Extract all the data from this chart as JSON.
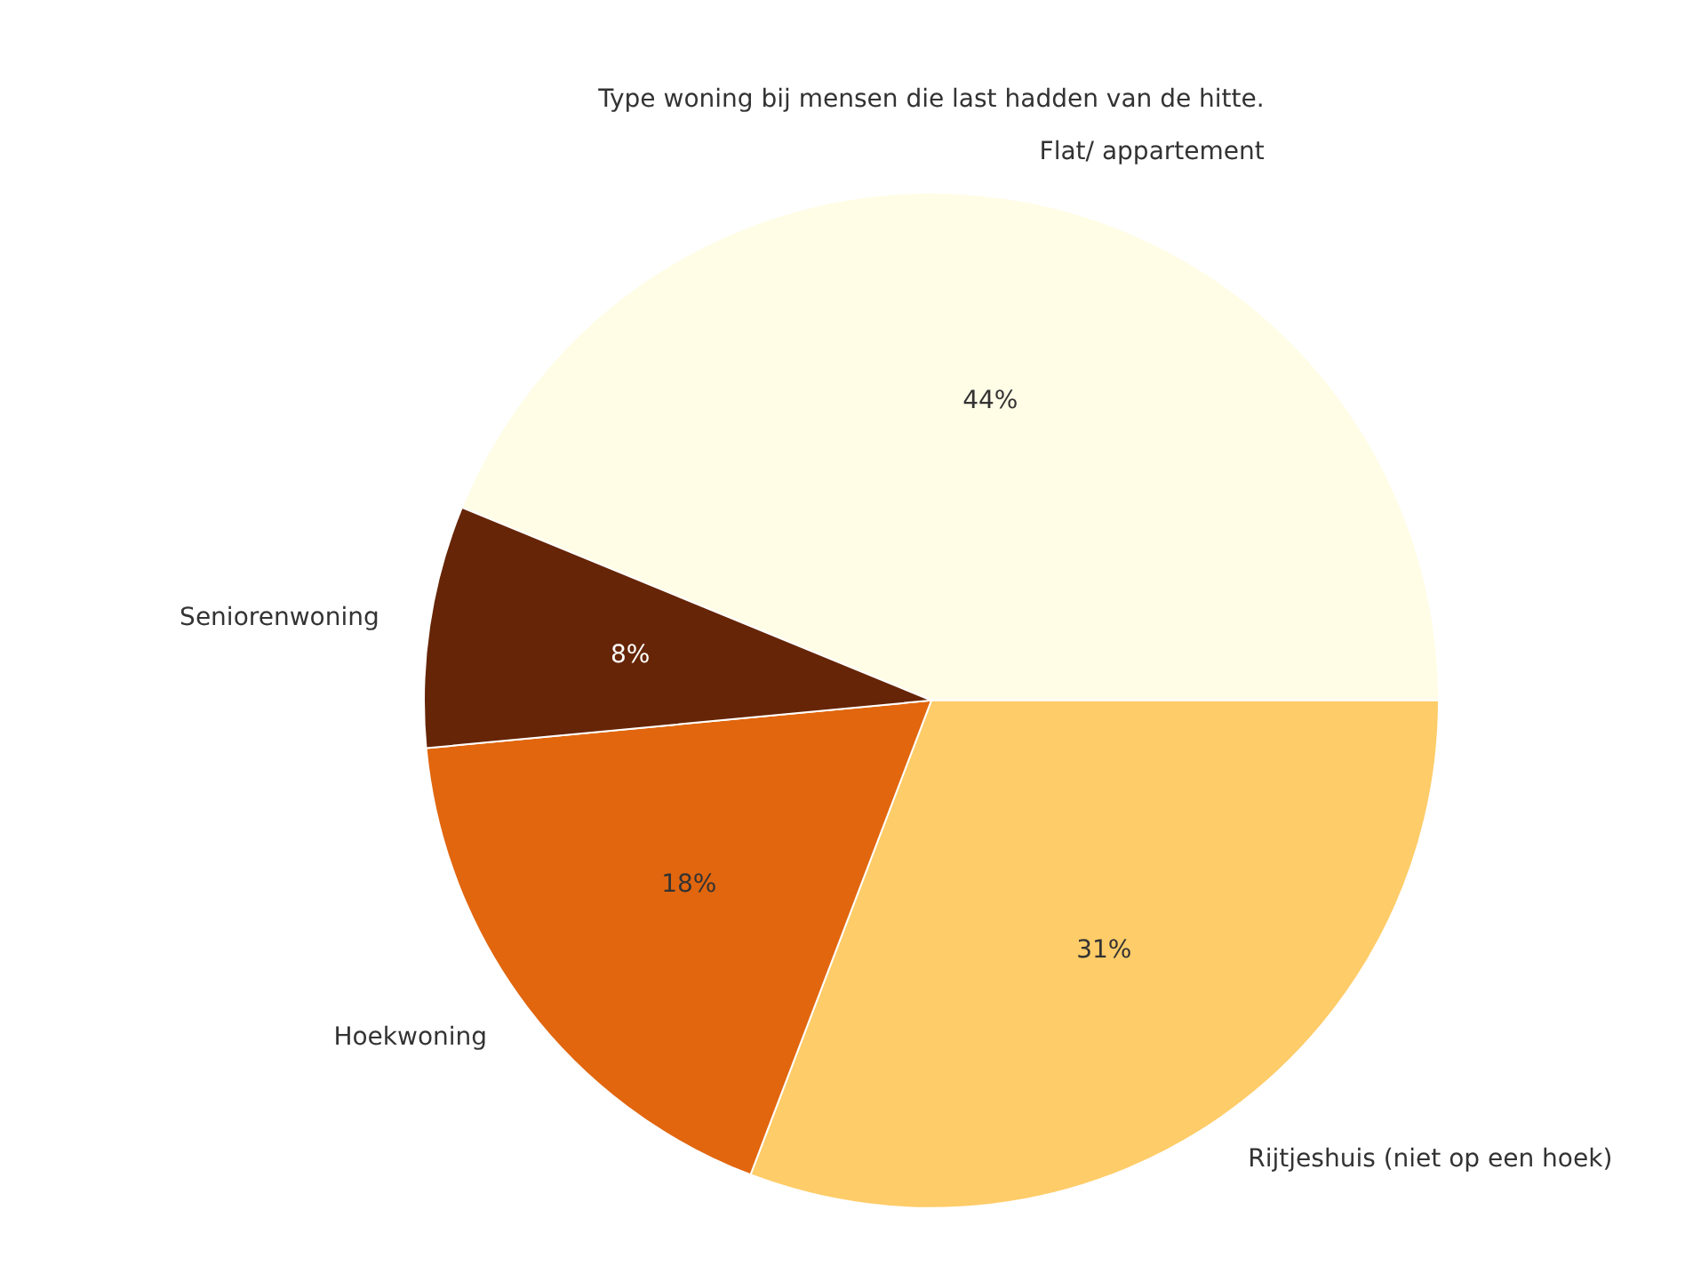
{
  "chart_data": {
    "type": "pie",
    "title": "Type woning bij mensen die last hadden van de hitte.",
    "categories": [
      "Flat/ appartement",
      "Rijtjeshuis (niet op een hoek)",
      "Hoekwoning",
      "Seniorenwoning"
    ],
    "values": [
      43.8,
      30.8,
      17.7,
      7.7
    ],
    "value_labels": [
      "44%",
      "31%",
      "18%",
      "8%"
    ],
    "colors": [
      "#fffde6",
      "#fecc68",
      "#e1660e",
      "#662506"
    ],
    "legend": false
  }
}
